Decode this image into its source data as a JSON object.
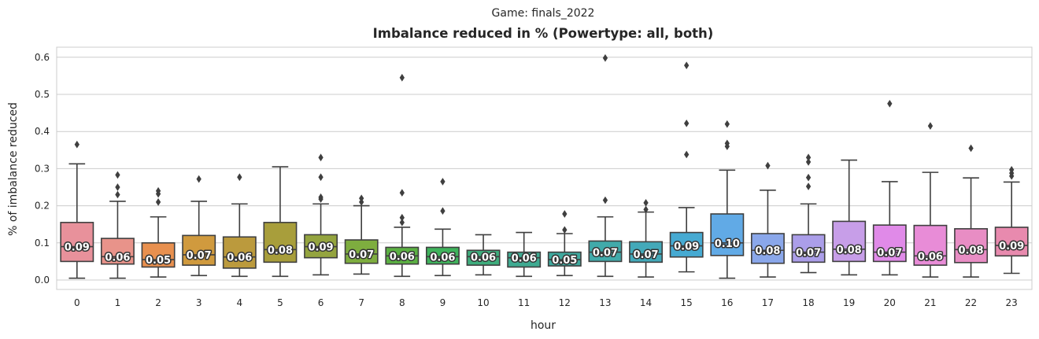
{
  "chart_data": {
    "type": "box",
    "suptitle": "Game: finals_2022",
    "title": "Imbalance reduced in % (Powertype: all, both)",
    "xlabel": "hour",
    "ylabel": "% of imbalance reduced",
    "ylim": [
      -0.025,
      0.63
    ],
    "yticks": [
      0.0,
      0.1,
      0.2,
      0.3,
      0.4,
      0.5,
      0.6
    ],
    "ytick_labels": [
      "0.0",
      "0.1",
      "0.2",
      "0.3",
      "0.4",
      "0.5",
      "0.6"
    ],
    "grid": true,
    "categories": [
      "0",
      "1",
      "2",
      "3",
      "4",
      "5",
      "6",
      "7",
      "8",
      "9",
      "10",
      "11",
      "12",
      "13",
      "14",
      "15",
      "16",
      "17",
      "18",
      "19",
      "20",
      "21",
      "22",
      "23"
    ],
    "series": [
      {
        "category": "0",
        "whislo": 0.005,
        "q1": 0.05,
        "median": 0.09,
        "q3": 0.155,
        "whishi": 0.313,
        "fliers": [
          0.365
        ],
        "label": "0.09",
        "color": "#e8919b"
      },
      {
        "category": "1",
        "whislo": 0.005,
        "q1": 0.043,
        "median": 0.063,
        "q3": 0.112,
        "whishi": 0.212,
        "fliers": [
          0.23,
          0.25,
          0.283
        ],
        "label": "0.06",
        "color": "#e8938a"
      },
      {
        "category": "2",
        "whislo": 0.008,
        "q1": 0.035,
        "median": 0.055,
        "q3": 0.1,
        "whishi": 0.17,
        "fliers": [
          0.21,
          0.232,
          0.24
        ],
        "label": "0.05",
        "color": "#e8904f"
      },
      {
        "category": "3",
        "whislo": 0.012,
        "q1": 0.04,
        "median": 0.068,
        "q3": 0.12,
        "whishi": 0.212,
        "fliers": [
          0.272
        ],
        "label": "0.07",
        "color": "#d09a3e"
      },
      {
        "category": "4",
        "whislo": 0.01,
        "q1": 0.032,
        "median": 0.062,
        "q3": 0.116,
        "whishi": 0.205,
        "fliers": [
          0.277
        ],
        "label": "0.06",
        "color": "#bb9a3d"
      },
      {
        "category": "5",
        "whislo": 0.01,
        "q1": 0.048,
        "median": 0.082,
        "q3": 0.155,
        "whishi": 0.305,
        "fliers": [],
        "label": "0.08",
        "color": "#a89e3b"
      },
      {
        "category": "6",
        "whislo": 0.014,
        "q1": 0.06,
        "median": 0.09,
        "q3": 0.122,
        "whishi": 0.205,
        "fliers": [
          0.218,
          0.223,
          0.277,
          0.33
        ],
        "label": "0.09",
        "color": "#94a43f"
      },
      {
        "category": "7",
        "whislo": 0.016,
        "q1": 0.045,
        "median": 0.07,
        "q3": 0.108,
        "whishi": 0.2,
        "fliers": [
          0.21,
          0.22
        ],
        "label": "0.07",
        "color": "#7ead3f"
      },
      {
        "category": "8",
        "whislo": 0.01,
        "q1": 0.043,
        "median": 0.065,
        "q3": 0.088,
        "whishi": 0.142,
        "fliers": [
          0.155,
          0.168,
          0.235,
          0.545
        ],
        "label": "0.06",
        "color": "#5bb043"
      },
      {
        "category": "9",
        "whislo": 0.012,
        "q1": 0.043,
        "median": 0.063,
        "q3": 0.088,
        "whishi": 0.137,
        "fliers": [
          0.186,
          0.265
        ],
        "label": "0.06",
        "color": "#3fb35c"
      },
      {
        "category": "10",
        "whislo": 0.014,
        "q1": 0.04,
        "median": 0.063,
        "q3": 0.08,
        "whishi": 0.122,
        "fliers": [],
        "label": "0.06",
        "color": "#3fad7d"
      },
      {
        "category": "11",
        "whislo": 0.01,
        "q1": 0.035,
        "median": 0.06,
        "q3": 0.075,
        "whishi": 0.128,
        "fliers": [],
        "label": "0.06",
        "color": "#3faa91"
      },
      {
        "category": "12",
        "whislo": 0.012,
        "q1": 0.038,
        "median": 0.055,
        "q3": 0.075,
        "whishi": 0.125,
        "fliers": [
          0.135,
          0.178
        ],
        "label": "0.05",
        "color": "#3fa99e"
      },
      {
        "category": "13",
        "whislo": 0.01,
        "q1": 0.05,
        "median": 0.075,
        "q3": 0.105,
        "whishi": 0.17,
        "fliers": [
          0.215,
          0.598
        ],
        "label": "0.07",
        "color": "#41aaaa"
      },
      {
        "category": "14",
        "whislo": 0.008,
        "q1": 0.048,
        "median": 0.07,
        "q3": 0.103,
        "whishi": 0.183,
        "fliers": [
          0.19,
          0.208
        ],
        "label": "0.07",
        "color": "#43a9b9"
      },
      {
        "category": "15",
        "whislo": 0.022,
        "q1": 0.062,
        "median": 0.092,
        "q3": 0.128,
        "whishi": 0.195,
        "fliers": [
          0.338,
          0.422,
          0.578
        ],
        "label": "0.09",
        "color": "#46aad2"
      },
      {
        "category": "16",
        "whislo": 0.005,
        "q1": 0.066,
        "median": 0.1,
        "q3": 0.178,
        "whishi": 0.296,
        "fliers": [
          0.36,
          0.368,
          0.42
        ],
        "label": "0.10",
        "color": "#61aae6"
      },
      {
        "category": "17",
        "whislo": 0.008,
        "q1": 0.045,
        "median": 0.08,
        "q3": 0.125,
        "whishi": 0.242,
        "fliers": [
          0.308
        ],
        "label": "0.08",
        "color": "#8aa7ea"
      },
      {
        "category": "18",
        "whislo": 0.02,
        "q1": 0.048,
        "median": 0.075,
        "q3": 0.122,
        "whishi": 0.205,
        "fliers": [
          0.252,
          0.276,
          0.318,
          0.33
        ],
        "label": "0.07",
        "color": "#ab9ee9"
      },
      {
        "category": "19",
        "whislo": 0.014,
        "q1": 0.05,
        "median": 0.083,
        "q3": 0.158,
        "whishi": 0.323,
        "fliers": [],
        "label": "0.08",
        "color": "#c79ee8"
      },
      {
        "category": "20",
        "whislo": 0.014,
        "q1": 0.05,
        "median": 0.075,
        "q3": 0.148,
        "whishi": 0.265,
        "fliers": [
          0.475
        ],
        "label": "0.07",
        "color": "#e08ae8"
      },
      {
        "category": "21",
        "whislo": 0.008,
        "q1": 0.04,
        "median": 0.065,
        "q3": 0.147,
        "whishi": 0.29,
        "fliers": [
          0.415
        ],
        "label": "0.06",
        "color": "#e88cd7"
      },
      {
        "category": "22",
        "whislo": 0.008,
        "q1": 0.047,
        "median": 0.082,
        "q3": 0.138,
        "whishi": 0.275,
        "fliers": [
          0.355
        ],
        "label": "0.08",
        "color": "#e88dc4"
      },
      {
        "category": "23",
        "whislo": 0.018,
        "q1": 0.065,
        "median": 0.093,
        "q3": 0.142,
        "whishi": 0.264,
        "fliers": [
          0.28,
          0.288,
          0.297
        ],
        "label": "0.09",
        "color": "#e88aae"
      }
    ]
  }
}
